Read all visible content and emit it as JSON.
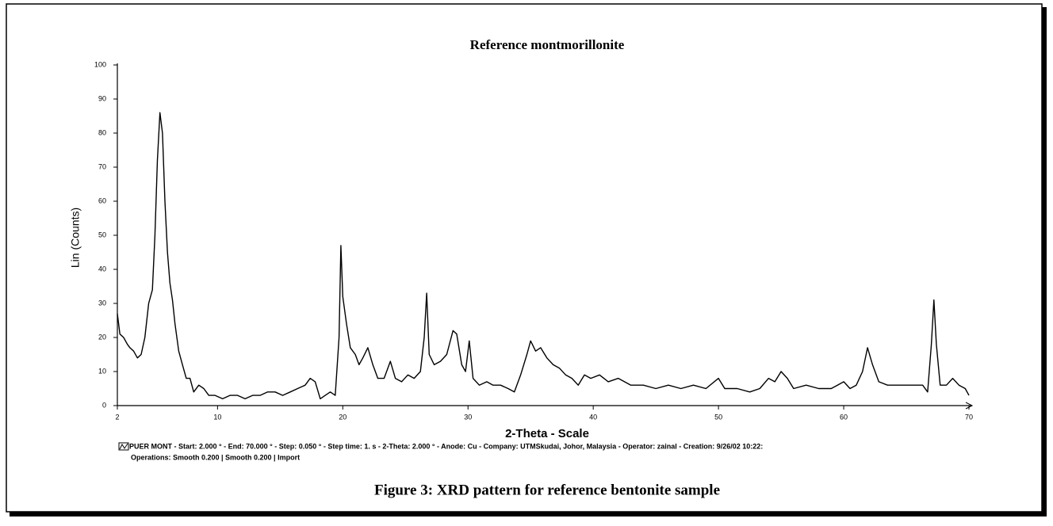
{
  "chart_data": {
    "type": "line",
    "title": "Reference montmorillonite",
    "x_label": "2-Theta - Scale",
    "y_label": "Lin (Counts)",
    "notes": [
      "PUER MONT - Start: 2.000 ° - End: 70.000 ° - Step: 0.050 ° - Step time: 1. s - 2-Theta: 2.000 ° - Anode: Cu - Company: UTMSkudai, Johor, Malaysia - Operator: zainal - Creation: 9/26/02 10:22:",
      "Operations: Smooth 0.200 | Smooth 0.200 | Import"
    ],
    "caption": "Figure 3: XRD pattern for reference bentonite sample",
    "xlim": [
      2,
      70
    ],
    "xticks": [
      2,
      10,
      20,
      30,
      40,
      50,
      60,
      70
    ],
    "ylim": [
      0,
      100
    ],
    "yticks": [
      0,
      10,
      20,
      30,
      40,
      50,
      60,
      70,
      80,
      90,
      100
    ],
    "x": [
      2,
      2.2,
      2.5,
      2.8,
      3,
      3.3,
      3.6,
      3.9,
      4.2,
      4.5,
      4.8,
      5.0,
      5.2,
      5.4,
      5.6,
      5.8,
      6.0,
      6.2,
      6.4,
      6.6,
      6.9,
      7.2,
      7.5,
      7.8,
      8.1,
      8.5,
      8.9,
      9.3,
      9.8,
      10.4,
      11,
      11.6,
      12.2,
      12.8,
      13.4,
      14,
      14.6,
      15.2,
      15.8,
      16.4,
      17,
      17.4,
      17.8,
      18.2,
      18.6,
      19,
      19.4,
      19.7,
      19.85,
      20.0,
      20.3,
      20.6,
      21,
      21.3,
      21.6,
      22,
      22.4,
      22.8,
      23.3,
      23.8,
      24.2,
      24.7,
      25.2,
      25.7,
      26.2,
      26.5,
      26.7,
      26.9,
      27.3,
      27.8,
      28.3,
      28.8,
      29.1,
      29.5,
      29.8,
      30.1,
      30.4,
      30.9,
      31.5,
      32,
      32.6,
      33.2,
      33.7,
      34.2,
      34.7,
      35,
      35.4,
      35.8,
      36.3,
      36.8,
      37.3,
      37.8,
      38.3,
      38.8,
      39.3,
      39.8,
      40.5,
      41.2,
      42,
      43,
      44,
      45,
      46,
      47,
      48,
      49,
      50,
      50.5,
      51.5,
      52.5,
      53.3,
      54,
      54.5,
      55,
      55.5,
      56,
      57,
      58,
      59,
      59.5,
      60,
      60.5,
      61,
      61.5,
      61.9,
      62.3,
      62.8,
      63.5,
      64.5,
      65.5,
      66.3,
      66.7,
      67.0,
      67.2,
      67.4,
      67.7,
      68.2,
      68.7,
      69.2,
      69.7,
      70
    ],
    "series": [
      {
        "color": "#000000",
        "values": [
          27,
          21,
          20,
          18,
          17,
          16,
          14,
          15,
          20,
          30,
          34,
          50,
          72,
          86,
          80,
          60,
          45,
          36,
          31,
          24,
          16,
          12,
          8,
          8,
          4,
          6,
          5,
          3,
          3,
          2,
          3,
          3,
          2,
          3,
          3,
          4,
          4,
          3,
          4,
          5,
          6,
          8,
          7,
          2,
          3,
          4,
          3,
          20,
          47,
          32,
          24,
          17,
          15,
          12,
          14,
          17,
          12,
          8,
          8,
          13,
          8,
          7,
          9,
          8,
          10,
          20,
          33,
          15,
          12,
          13,
          15,
          22,
          21,
          12,
          10,
          19,
          8,
          6,
          7,
          6,
          6,
          5,
          4,
          9,
          15,
          19,
          16,
          17,
          14,
          12,
          11,
          9,
          8,
          6,
          9,
          8,
          9,
          7,
          8,
          6,
          6,
          5,
          6,
          5,
          6,
          5,
          8,
          5,
          5,
          4,
          5,
          8,
          7,
          10,
          8,
          5,
          6,
          5,
          5,
          6,
          7,
          5,
          6,
          10,
          17,
          12,
          7,
          6,
          6,
          6,
          6,
          4,
          18,
          31,
          18,
          6,
          6,
          8,
          6,
          5,
          3
        ]
      }
    ]
  }
}
